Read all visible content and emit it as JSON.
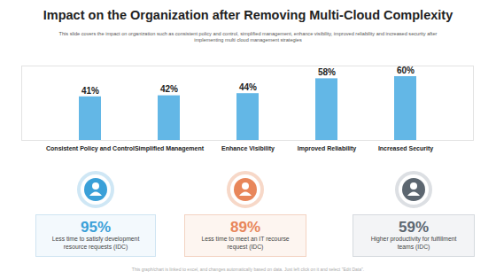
{
  "chart_data": {
    "type": "bar",
    "title": "Impact on the Organization after Removing Multi-Cloud Complexity",
    "subtitle": "This slide covers the impact on organization such as consistent policy and control, simplified management, enhance visibility, improved reliability and increased security after implementing multi cloud management strategies",
    "categories": [
      "Consistent Policy and Control",
      "Simplified Management",
      "Enhance Visibility",
      "Improved Reliability",
      "Increased Security"
    ],
    "values": [
      41,
      42,
      44,
      58,
      60
    ],
    "value_labels": [
      "41%",
      "42%",
      "44%",
      "58%",
      "60%"
    ],
    "color": "#63b7e6",
    "ylim": [
      0,
      70
    ],
    "data_labels": true,
    "tick_labels": "x"
  },
  "cards": [
    {
      "figure": "95%",
      "text": "Less time to satisfy development resource requests (IDC)"
    },
    {
      "figure": "89%",
      "text": "Less time to meet an IT recourse request (IDC)"
    },
    {
      "figure": "59%",
      "text": "Higher productivity for fulfillment teams (IDC)"
    }
  ],
  "footer": "This graph/chart is linked to excel, and changes automatically based on data. Just left click on it and select \"Edit Data\"."
}
